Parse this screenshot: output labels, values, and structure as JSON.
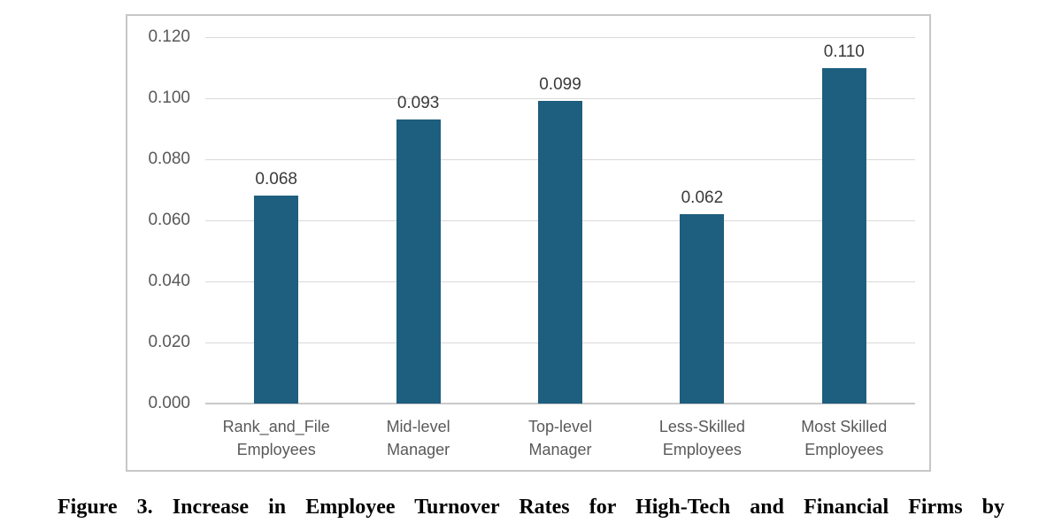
{
  "caption": "Figure 3. Increase in Employee Turnover Rates for High-Tech and Financial Firms by",
  "colors": {
    "bar": "#1e5e7e",
    "gridline": "#d9d9d9",
    "axis_line": "#c9c9c9",
    "frame_border": "#c7c7c7",
    "tick_text": "#595959",
    "value_label_text": "#3a3a3a",
    "background": "#ffffff"
  },
  "chart_data": {
    "type": "bar",
    "title": "",
    "xlabel": "",
    "ylabel": "",
    "categories": [
      "Rank_and_File\nEmployees",
      "Mid-level\nManager",
      "Top-level\nManager",
      "Less-Skilled\nEmployees",
      "Most Skilled\nEmployees"
    ],
    "values": [
      0.068,
      0.093,
      0.099,
      0.062,
      0.11
    ],
    "data_labels": [
      "0.068",
      "0.093",
      "0.099",
      "0.062",
      "0.110"
    ],
    "y_ticks": [
      "0.120",
      "0.100",
      "0.080",
      "0.060",
      "0.040",
      "0.020",
      "0.000"
    ],
    "ylim": [
      0,
      0.12
    ],
    "y_tick_step": 0.02,
    "grid": true,
    "legend": "none",
    "bar_color": "#1e5e7e"
  }
}
